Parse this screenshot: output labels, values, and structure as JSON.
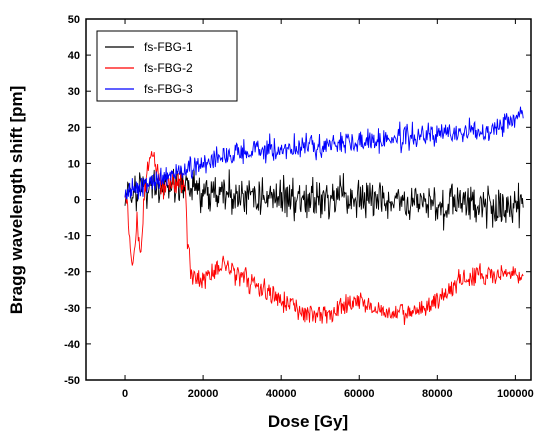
{
  "chart_data": {
    "type": "line",
    "xlabel": "Dose [Gy]",
    "ylabel": "Bragg wavelength shift [pm]",
    "xlim": [
      -10000,
      104000
    ],
    "ylim": [
      -50,
      50
    ],
    "xticks": [
      0,
      20000,
      40000,
      60000,
      80000,
      100000
    ],
    "xtick_labels": [
      "0",
      "20000",
      "40000",
      "60000",
      "80000",
      "100000"
    ],
    "yticks": [
      -50,
      -40,
      -30,
      -20,
      -10,
      0,
      10,
      20,
      30,
      40,
      50
    ],
    "ytick_labels": [
      "-50",
      "-40",
      "-30",
      "-20",
      "-10",
      "0",
      "10",
      "20",
      "30",
      "40",
      "50"
    ],
    "grid": false,
    "legend_position": "top-left",
    "series": [
      {
        "name": "fs-FBG-1",
        "color": "#000000",
        "noise": 3.5,
        "x": [
          0,
          2000,
          5000,
          10000,
          15000,
          17000,
          20000,
          30000,
          40000,
          50000,
          60000,
          70000,
          80000,
          90000,
          100000,
          102000
        ],
        "values": [
          0,
          2,
          3,
          3,
          4,
          3,
          2,
          1,
          1,
          0,
          0,
          -1,
          -1,
          -1,
          -2,
          -2
        ]
      },
      {
        "name": "fs-FBG-2",
        "color": "#ff0000",
        "noise": 1.8,
        "x": [
          0,
          500,
          1000,
          1500,
          2000,
          2500,
          3000,
          4000,
          5000,
          6000,
          7000,
          8000,
          9000,
          10000,
          12000,
          14000,
          15500,
          16000,
          17000,
          18000,
          20000,
          25000,
          30000,
          35000,
          40000,
          45000,
          50000,
          55000,
          60000,
          65000,
          70000,
          75000,
          80000,
          85000,
          90000,
          95000,
          100000,
          102000
        ],
        "values": [
          3,
          0,
          -8,
          -17,
          -19,
          -15,
          -5,
          -17,
          3,
          10,
          13,
          10,
          5,
          4,
          5,
          5,
          4,
          -12,
          -21,
          -22,
          -22,
          -18,
          -21,
          -25,
          -28,
          -31,
          -32,
          -30,
          -28,
          -31,
          -32,
          -31,
          -28,
          -23,
          -21,
          -21,
          -21,
          -22
        ]
      },
      {
        "name": "fs-FBG-3",
        "color": "#0000ff",
        "noise": 2.0,
        "x": [
          0,
          2000,
          5000,
          10000,
          15000,
          20000,
          25000,
          30000,
          40000,
          50000,
          60000,
          70000,
          80000,
          90000,
          95000,
          100000,
          102000
        ],
        "values": [
          1,
          3,
          4,
          6,
          8,
          10,
          12,
          13,
          14,
          15,
          16,
          17,
          18,
          19,
          20,
          23,
          24
        ]
      }
    ]
  }
}
